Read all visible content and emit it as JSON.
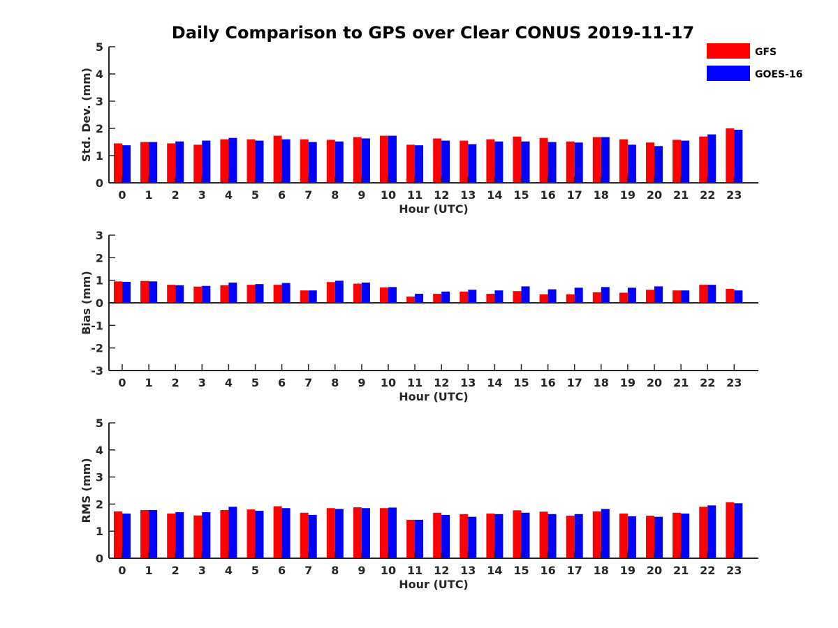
{
  "chart_data": {
    "title": "Daily Comparison to GPS over Clear CONUS 2019-11-17",
    "type": "bar",
    "grid": false,
    "legend": {
      "position": "top-right",
      "entries": [
        {
          "name": "GFS",
          "color": "#ff0000"
        },
        {
          "name": "GOES-16",
          "color": "#0000ff"
        }
      ]
    },
    "categories": [
      "0",
      "1",
      "2",
      "3",
      "4",
      "5",
      "6",
      "7",
      "8",
      "9",
      "10",
      "11",
      "12",
      "13",
      "14",
      "15",
      "16",
      "17",
      "18",
      "19",
      "20",
      "21",
      "22",
      "23"
    ],
    "panels": [
      {
        "type": "bar",
        "xlabel": "Hour (UTC)",
        "ylabel": "Std. Dev. (mm)",
        "ylim": [
          0,
          5
        ],
        "yticks": [
          0,
          1,
          2,
          3,
          4,
          5
        ],
        "series": [
          {
            "name": "GFS",
            "color": "#ff0000",
            "values": [
              1.45,
              1.5,
              1.45,
              1.4,
              1.6,
              1.6,
              1.73,
              1.6,
              1.58,
              1.68,
              1.73,
              1.4,
              1.63,
              1.55,
              1.6,
              1.7,
              1.65,
              1.52,
              1.68,
              1.6,
              1.48,
              1.58,
              1.7,
              2.0
            ]
          },
          {
            "name": "GOES-16",
            "color": "#0000ff",
            "values": [
              1.38,
              1.5,
              1.52,
              1.55,
              1.65,
              1.55,
              1.6,
              1.5,
              1.52,
              1.63,
              1.73,
              1.38,
              1.55,
              1.42,
              1.52,
              1.52,
              1.5,
              1.48,
              1.68,
              1.4,
              1.35,
              1.55,
              1.78,
              1.95
            ]
          }
        ]
      },
      {
        "type": "bar",
        "xlabel": "Hour (UTC)",
        "ylabel": "Bias (mm)",
        "ylim": [
          -3,
          3
        ],
        "yticks": [
          -3,
          -2,
          -1,
          0,
          1,
          2,
          3
        ],
        "series": [
          {
            "name": "GFS",
            "color": "#ff0000",
            "values": [
              0.95,
              0.97,
              0.8,
              0.72,
              0.78,
              0.8,
              0.8,
              0.55,
              0.92,
              0.85,
              0.68,
              0.28,
              0.4,
              0.5,
              0.4,
              0.52,
              0.38,
              0.38,
              0.47,
              0.45,
              0.58,
              0.55,
              0.8,
              0.62
            ]
          },
          {
            "name": "GOES-16",
            "color": "#0000ff",
            "values": [
              0.93,
              0.95,
              0.78,
              0.75,
              0.9,
              0.83,
              0.88,
              0.55,
              0.98,
              0.9,
              0.7,
              0.4,
              0.5,
              0.58,
              0.55,
              0.73,
              0.6,
              0.67,
              0.7,
              0.67,
              0.73,
              0.55,
              0.8,
              0.55
            ]
          }
        ]
      },
      {
        "type": "bar",
        "xlabel": "Hour (UTC)",
        "ylabel": "RMS (mm)",
        "ylim": [
          0,
          5
        ],
        "yticks": [
          0,
          1,
          2,
          3,
          4,
          5
        ],
        "series": [
          {
            "name": "GFS",
            "color": "#ff0000",
            "values": [
              1.73,
              1.78,
              1.65,
              1.58,
              1.78,
              1.8,
              1.92,
              1.68,
              1.85,
              1.88,
              1.85,
              1.42,
              1.68,
              1.63,
              1.65,
              1.77,
              1.72,
              1.57,
              1.73,
              1.65,
              1.57,
              1.68,
              1.9,
              2.07
            ]
          },
          {
            "name": "GOES-16",
            "color": "#0000ff",
            "values": [
              1.65,
              1.78,
              1.7,
              1.7,
              1.9,
              1.75,
              1.85,
              1.6,
              1.82,
              1.85,
              1.87,
              1.42,
              1.6,
              1.53,
              1.63,
              1.68,
              1.63,
              1.63,
              1.82,
              1.55,
              1.53,
              1.65,
              1.95,
              2.03
            ]
          }
        ]
      }
    ]
  }
}
